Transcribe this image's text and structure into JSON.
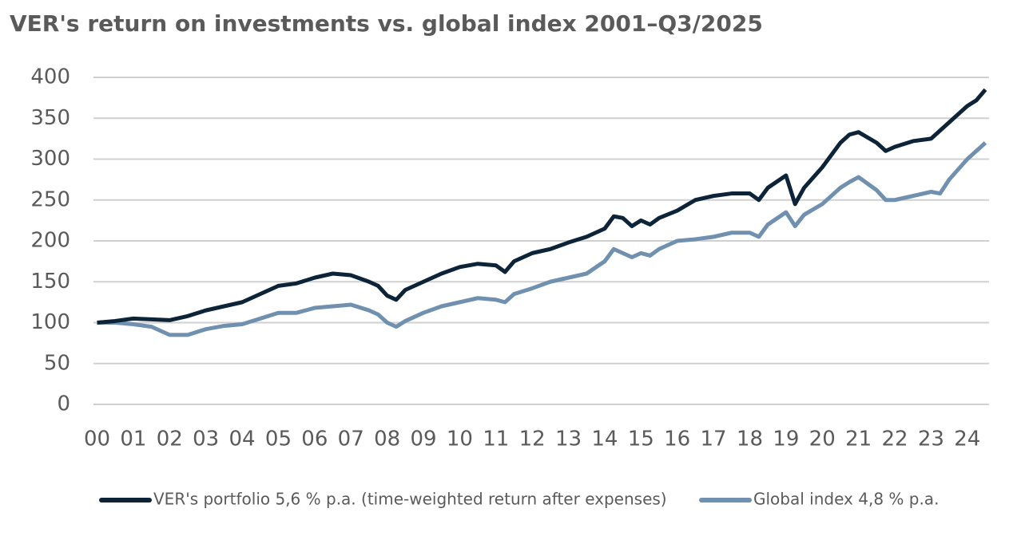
{
  "chart_data": {
    "type": "line",
    "title": "VER's return on investments vs. global index 2001–Q3/2025",
    "x": [
      0,
      0.5,
      1,
      1.5,
      2,
      2.5,
      3,
      3.5,
      4,
      4.5,
      5,
      5.5,
      6,
      6.5,
      7,
      7.5,
      7.75,
      8,
      8.25,
      8.5,
      9,
      9.5,
      10,
      10.5,
      11,
      11.25,
      11.5,
      12,
      12.5,
      13,
      13.5,
      14,
      14.25,
      14.5,
      14.75,
      15,
      15.25,
      15.5,
      16,
      16.5,
      17,
      17.5,
      18,
      18.25,
      18.5,
      19,
      19.25,
      19.5,
      20,
      20.5,
      20.75,
      21,
      21.5,
      21.75,
      22,
      22.5,
      23,
      23.25,
      23.5,
      24,
      24.25,
      24.5
    ],
    "series": [
      {
        "name": "VER's portfolio 5,6 % p.a. (time-weighted return after expenses)",
        "color": "#0d2438",
        "values": [
          100,
          102,
          105,
          104,
          103,
          108,
          115,
          120,
          125,
          135,
          145,
          148,
          155,
          160,
          158,
          150,
          145,
          133,
          128,
          140,
          150,
          160,
          168,
          172,
          170,
          162,
          175,
          185,
          190,
          198,
          205,
          215,
          230,
          228,
          218,
          225,
          220,
          228,
          237,
          250,
          255,
          258,
          258,
          250,
          265,
          280,
          245,
          265,
          290,
          320,
          330,
          333,
          320,
          310,
          315,
          322,
          325,
          335,
          345,
          365,
          372,
          385
        ]
      },
      {
        "name": "Global index 4,8 % p.a.",
        "color": "#7090b0",
        "values": [
          100,
          100,
          98,
          95,
          85,
          85,
          92,
          96,
          98,
          105,
          112,
          112,
          118,
          120,
          122,
          115,
          110,
          100,
          95,
          102,
          112,
          120,
          125,
          130,
          128,
          125,
          135,
          142,
          150,
          155,
          160,
          175,
          190,
          185,
          180,
          185,
          182,
          190,
          200,
          202,
          205,
          210,
          210,
          205,
          220,
          235,
          218,
          232,
          245,
          265,
          272,
          278,
          262,
          250,
          250,
          255,
          260,
          258,
          275,
          300,
          310,
          320
        ]
      }
    ],
    "xlim": [
      -0.1,
      24.6
    ],
    "xticks": [
      {
        "value": 0,
        "label": "00"
      },
      {
        "value": 1,
        "label": "01"
      },
      {
        "value": 2,
        "label": "02"
      },
      {
        "value": 3,
        "label": "03"
      },
      {
        "value": 4,
        "label": "04"
      },
      {
        "value": 5,
        "label": "05"
      },
      {
        "value": 6,
        "label": "06"
      },
      {
        "value": 7,
        "label": "07"
      },
      {
        "value": 8,
        "label": "08"
      },
      {
        "value": 9,
        "label": "09"
      },
      {
        "value": 10,
        "label": "10"
      },
      {
        "value": 11,
        "label": "11"
      },
      {
        "value": 12,
        "label": "12"
      },
      {
        "value": 13,
        "label": "13"
      },
      {
        "value": 14,
        "label": "14"
      },
      {
        "value": 15,
        "label": "15"
      },
      {
        "value": 16,
        "label": "16"
      },
      {
        "value": 17,
        "label": "17"
      },
      {
        "value": 18,
        "label": "18"
      },
      {
        "value": 19,
        "label": "19"
      },
      {
        "value": 20,
        "label": "20"
      },
      {
        "value": 21,
        "label": "21"
      },
      {
        "value": 22,
        "label": "22"
      },
      {
        "value": 23,
        "label": "23"
      },
      {
        "value": 24,
        "label": "24"
      }
    ],
    "ylim": [
      0,
      400
    ],
    "yticks": [
      0,
      50,
      100,
      150,
      200,
      250,
      300,
      350,
      400
    ],
    "grid": true
  }
}
